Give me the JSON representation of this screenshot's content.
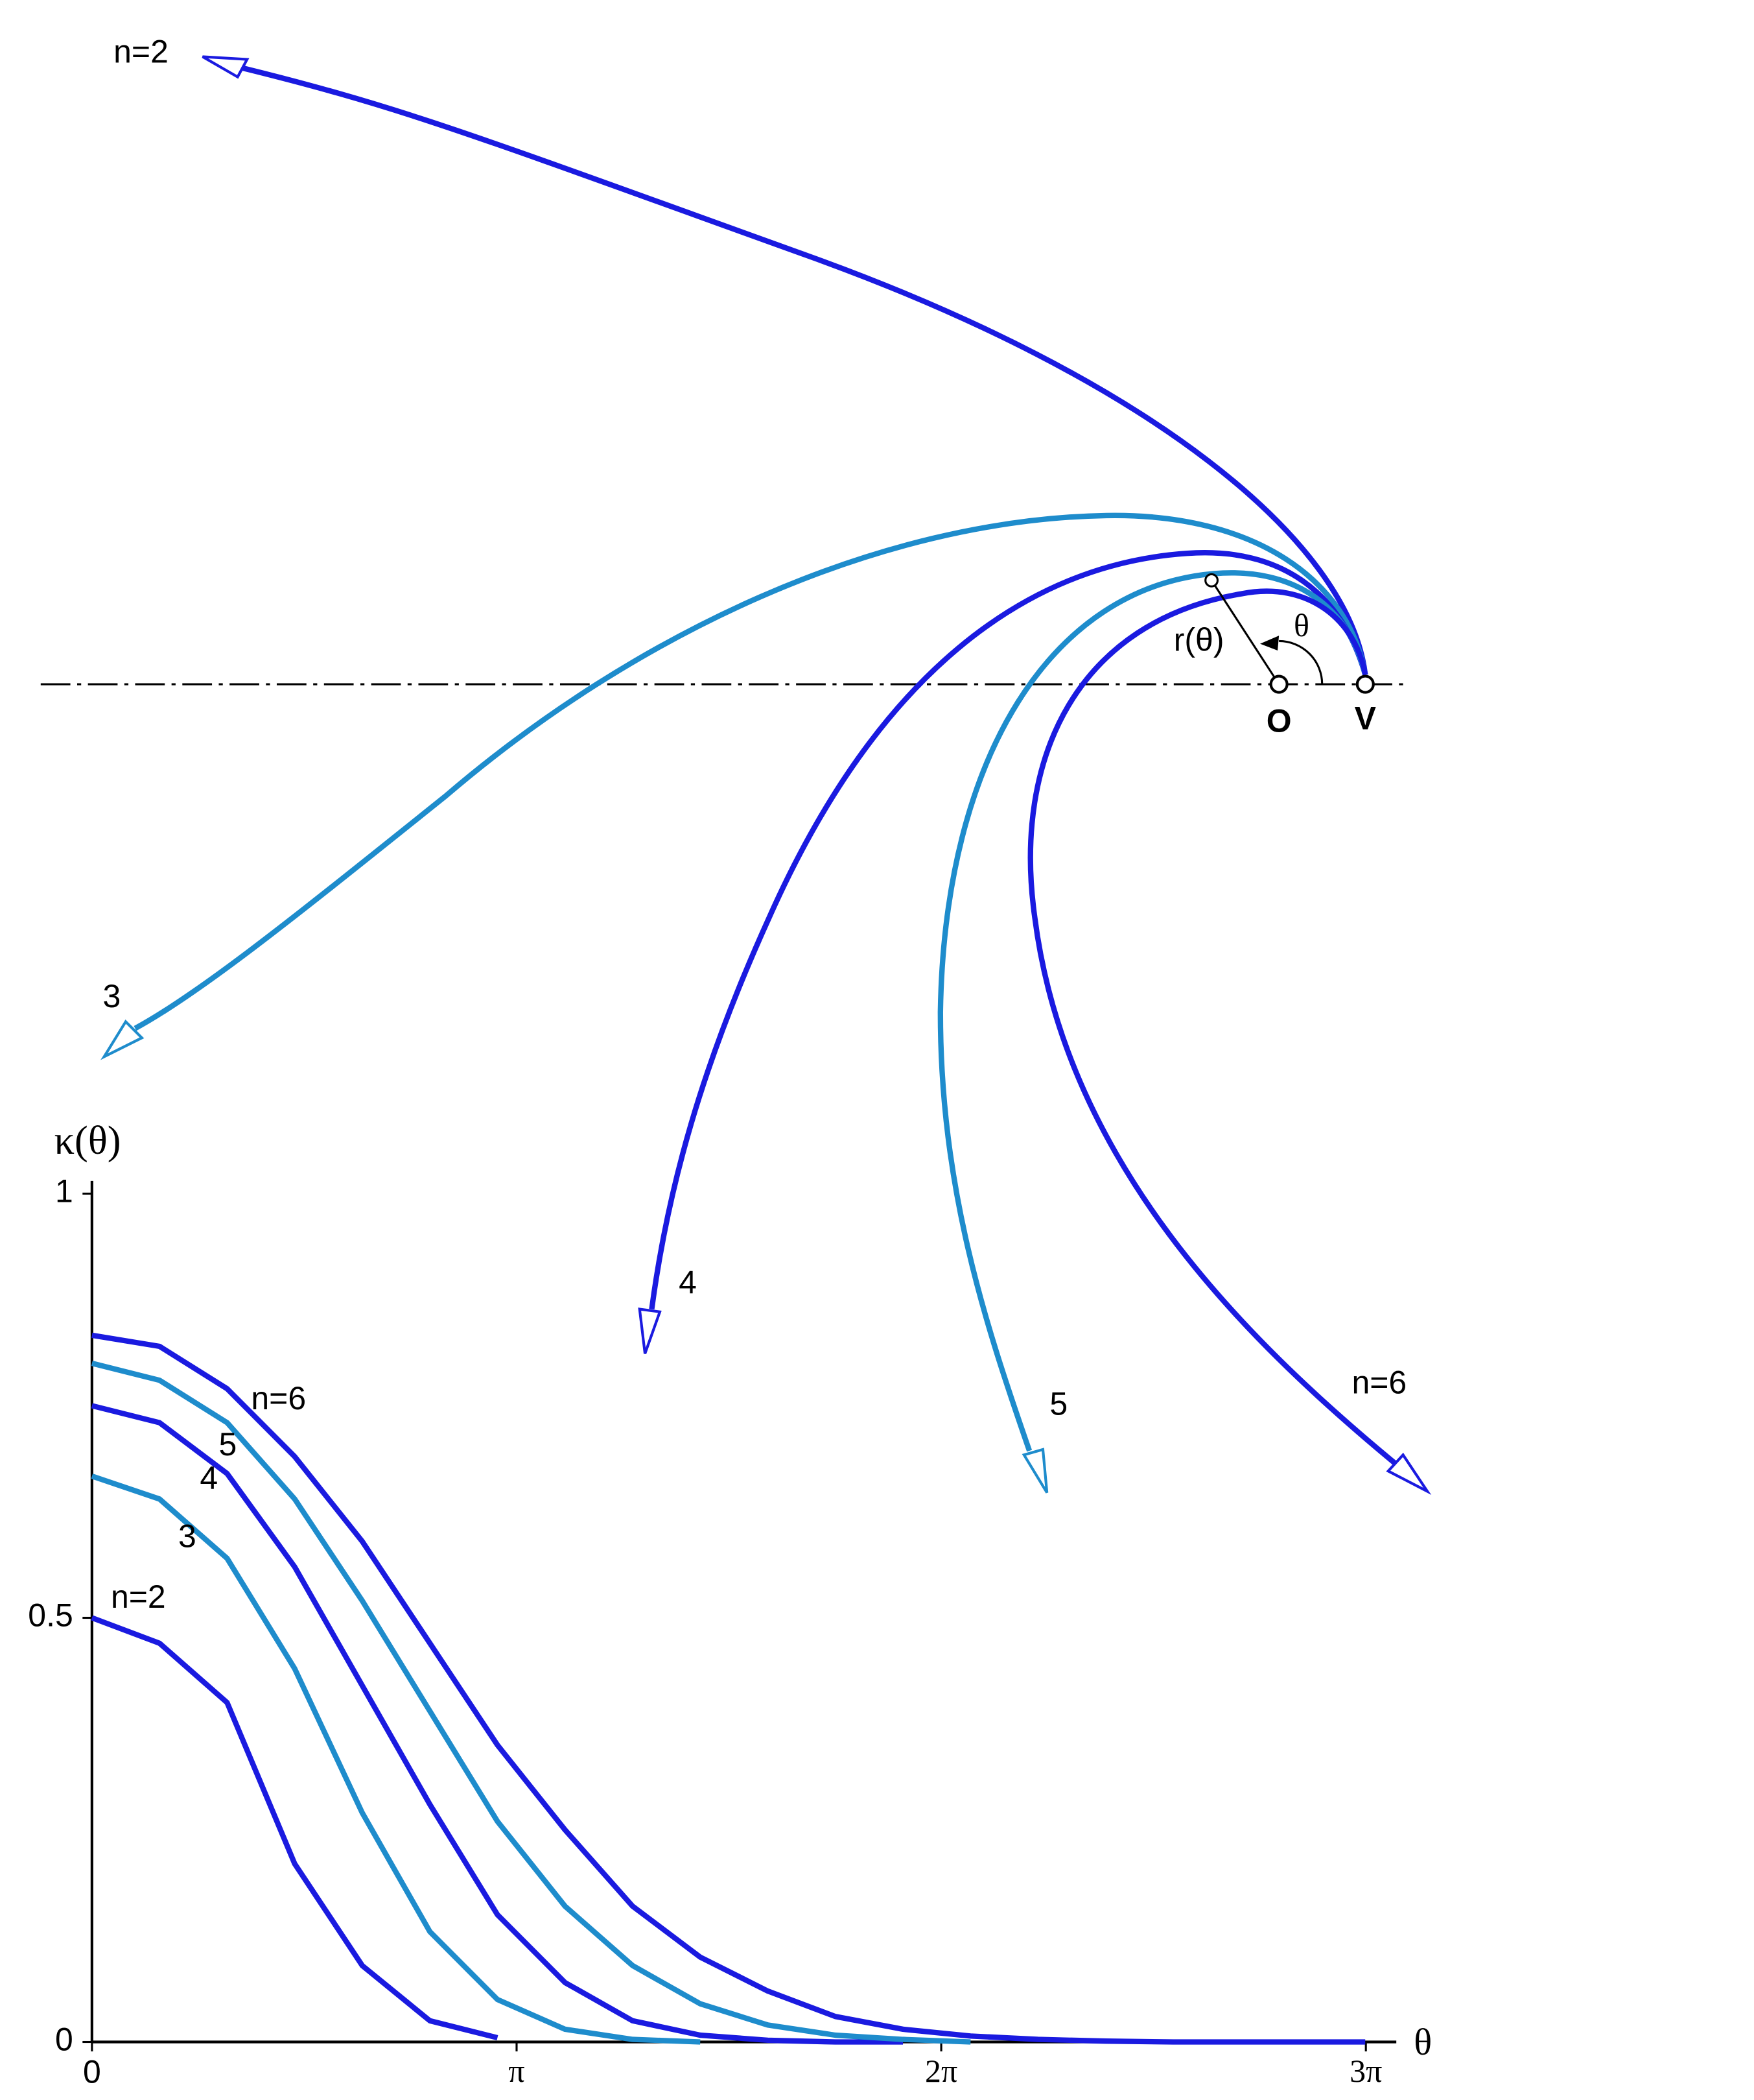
{
  "chart_data": {
    "type": "line",
    "y_label": "κ(θ)",
    "x_label": "θ",
    "x": [
      0,
      0.5,
      1,
      1.5,
      2,
      2.5,
      3,
      3.5,
      4,
      4.5,
      5,
      5.5,
      6,
      6.5,
      7,
      7.5,
      8,
      8.5,
      9,
      9.42
    ],
    "series": [
      {
        "name": "n=2",
        "color": "#1a1ae0",
        "values": [
          0.5,
          0.47,
          0.4,
          0.21,
          0.09,
          0.025,
          0.005,
          null,
          null,
          null,
          null,
          null,
          null,
          null,
          null,
          null,
          null,
          null,
          null,
          null
        ]
      },
      {
        "name": "3",
        "color": "#1e8ccc",
        "values": [
          0.667,
          0.64,
          0.57,
          0.44,
          0.27,
          0.13,
          0.05,
          0.015,
          0.003,
          0,
          null,
          null,
          null,
          null,
          null,
          null,
          null,
          null,
          null,
          null
        ]
      },
      {
        "name": "4",
        "color": "#1a1ae0",
        "values": [
          0.75,
          0.73,
          0.67,
          0.56,
          0.42,
          0.28,
          0.15,
          0.07,
          0.025,
          0.008,
          0.002,
          0,
          0,
          null,
          null,
          null,
          null,
          null,
          null,
          null
        ]
      },
      {
        "name": "5",
        "color": "#1e8ccc",
        "values": [
          0.8,
          0.78,
          0.73,
          0.64,
          0.52,
          0.39,
          0.26,
          0.16,
          0.09,
          0.045,
          0.02,
          0.008,
          0.003,
          0,
          null,
          null,
          null,
          null,
          null,
          null
        ]
      },
      {
        "name": "n=6",
        "color": "#1a1ae0",
        "values": [
          0.833,
          0.82,
          0.77,
          0.69,
          0.59,
          0.47,
          0.35,
          0.25,
          0.16,
          0.1,
          0.06,
          0.03,
          0.015,
          0.007,
          0.003,
          0.001,
          0,
          0,
          0,
          0
        ]
      }
    ],
    "xlim": [
      0,
      9.65
    ],
    "xticks": [
      0,
      {
        "value": 3.1416,
        "label": "π"
      },
      {
        "value": 6.2832,
        "label": "2π"
      },
      {
        "value": 9.4248,
        "label": "3π"
      }
    ],
    "ylim": [
      0,
      1.015
    ],
    "yticks": [
      0,
      {
        "value": 0.5,
        "label": "0.5"
      },
      1
    ]
  },
  "diagram": {
    "curve_labels": [
      "n=2",
      "3",
      "4",
      "5",
      "n=6"
    ],
    "radius_label": "r(θ)",
    "angle_label": "θ",
    "origin_label": "O",
    "vertex_label": "V"
  }
}
